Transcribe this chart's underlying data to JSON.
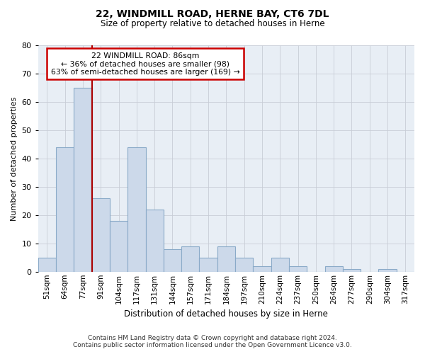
{
  "title": "22, WINDMILL ROAD, HERNE BAY, CT6 7DL",
  "subtitle": "Size of property relative to detached houses in Herne",
  "xlabel": "Distribution of detached houses by size in Herne",
  "ylabel": "Number of detached properties",
  "categories": [
    "51sqm",
    "64sqm",
    "77sqm",
    "91sqm",
    "104sqm",
    "117sqm",
    "131sqm",
    "144sqm",
    "157sqm",
    "171sqm",
    "184sqm",
    "197sqm",
    "210sqm",
    "224sqm",
    "237sqm",
    "250sqm",
    "264sqm",
    "277sqm",
    "290sqm",
    "304sqm",
    "317sqm"
  ],
  "values": [
    5,
    44,
    65,
    26,
    18,
    44,
    22,
    8,
    9,
    5,
    9,
    5,
    2,
    5,
    2,
    0,
    2,
    1,
    0,
    1,
    0
  ],
  "bar_color": "#ccd9ea",
  "bar_edge_color": "#8aaac8",
  "grid_color": "#c8cdd6",
  "vline_x_index": 2,
  "vline_color": "#aa0000",
  "annotation_box_text": "22 WINDMILL ROAD: 86sqm\n← 36% of detached houses are smaller (98)\n63% of semi-detached houses are larger (169) →",
  "annotation_box_color": "#ffffff",
  "annotation_box_edge_color": "#cc0000",
  "ylim": [
    0,
    80
  ],
  "yticks": [
    0,
    10,
    20,
    30,
    40,
    50,
    60,
    70,
    80
  ],
  "footer_line1": "Contains HM Land Registry data © Crown copyright and database right 2024.",
  "footer_line2": "Contains public sector information licensed under the Open Government Licence v3.0.",
  "background_color": "#ffffff",
  "plot_bg_color": "#e8eef5"
}
